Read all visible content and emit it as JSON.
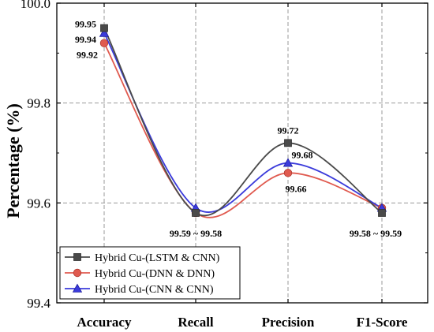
{
  "chart_data": {
    "type": "line",
    "ylabel": "Percentage (%)",
    "categories": [
      "Accuracy",
      "Recall",
      "Precision",
      "F1-Score"
    ],
    "ylim": [
      99.4,
      100.0
    ],
    "yticks": [
      99.4,
      99.6,
      99.8,
      100.0
    ],
    "ytick_labels": [
      "99.4",
      "99.6",
      "99.8",
      "100.0"
    ],
    "grid": true,
    "smooth": true,
    "legend_position": "bottom-left",
    "series": [
      {
        "name": "Hybrid Cu-(LSTM & CNN)",
        "values": [
          99.95,
          99.58,
          99.72,
          99.58
        ],
        "color": "#4a4a4a",
        "marker": "square"
      },
      {
        "name": "Hybrid Cu-(DNN & DNN)",
        "values": [
          99.92,
          99.58,
          99.66,
          99.59
        ],
        "color": "#e05a4f",
        "marker": "circle"
      },
      {
        "name": "Hybrid Cu-(CNN & CNN)",
        "values": [
          99.94,
          99.59,
          99.68,
          99.59
        ],
        "color": "#3b3bdb",
        "marker": "triangle"
      }
    ],
    "annotations": [
      {
        "text": "99.95",
        "category": 0,
        "value": 99.95
      },
      {
        "text": "99.94",
        "category": 0,
        "value": 99.94
      },
      {
        "text": "99.92",
        "category": 0,
        "value": 99.92
      },
      {
        "text": "99.59 ~ 99.58",
        "category": 1,
        "value": 99.58
      },
      {
        "text": "99.72",
        "category": 2,
        "value": 99.72
      },
      {
        "text": "99.68",
        "category": 2,
        "value": 99.68
      },
      {
        "text": "99.66",
        "category": 2,
        "value": 99.66
      },
      {
        "text": "99.58 ~ 99.59",
        "category": 3,
        "value": 99.58
      }
    ]
  }
}
